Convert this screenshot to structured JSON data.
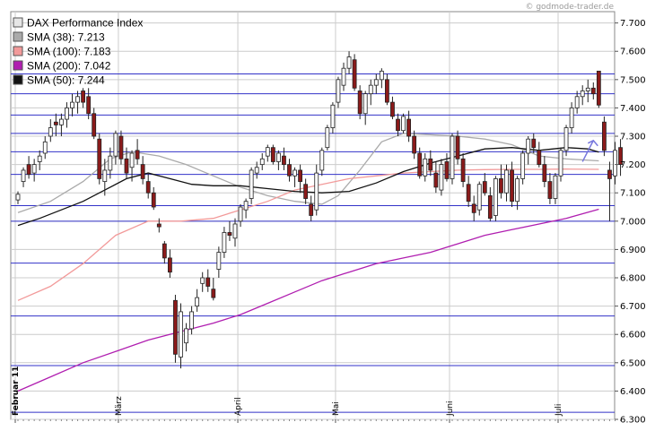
{
  "watermark": "© godmode-trader.de",
  "legend": [
    {
      "label": "DAX Performance Index",
      "swatch": "#e6e6e6"
    },
    {
      "label": "SMA (38): 7.213",
      "swatch": "#aaaaaa"
    },
    {
      "label": "SMA (100): 7.183",
      "swatch": "#f29a9a"
    },
    {
      "label": "SMA (200): 7.042",
      "swatch": "#b01eb0"
    },
    {
      "label": "SMA (50): 7.244",
      "swatch": "#111111"
    }
  ],
  "colors": {
    "up": "#ffffff",
    "down": "#8b1a1a",
    "sma38": "#aaaaaa",
    "sma100": "#f29a9a",
    "sma200": "#b01eb0",
    "sma50": "#111111",
    "hlines": "#3232c8",
    "grid": "#cccccc",
    "arrow": "#7777dd"
  },
  "chart_data": {
    "type": "candlestick",
    "ylim": [
      6300,
      7740
    ],
    "yticks": [
      {
        "v": 7700,
        "label": "7.700"
      },
      {
        "v": 7600,
        "label": "7.600"
      },
      {
        "v": 7500,
        "label": "7.500"
      },
      {
        "v": 7400,
        "label": "7.400"
      },
      {
        "v": 7300,
        "label": "7.300"
      },
      {
        "v": 7200,
        "label": "7.200"
      },
      {
        "v": 7100,
        "label": "7.100"
      },
      {
        "v": 7000,
        "label": "7.000"
      },
      {
        "v": 6900,
        "label": "6.900"
      },
      {
        "v": 6800,
        "label": "6.800"
      },
      {
        "v": 6700,
        "label": "6.700"
      },
      {
        "v": 6600,
        "label": "6.600"
      },
      {
        "v": 6500,
        "label": "6.500"
      },
      {
        "v": 6400,
        "label": "6.400"
      },
      {
        "v": 6300,
        "label": "6.300"
      }
    ],
    "months": [
      {
        "i": 0,
        "label": "Februar 11"
      },
      {
        "i": 19,
        "label": "März"
      },
      {
        "i": 41,
        "label": "April"
      },
      {
        "i": 59,
        "label": "Mai"
      },
      {
        "i": 80,
        "label": "Juni"
      },
      {
        "i": 100,
        "label": "Juli"
      }
    ],
    "hlines": [
      7520,
      7450,
      7375,
      7310,
      7245,
      7165,
      7055,
      7000,
      6852,
      6665,
      6490,
      6325
    ],
    "ohlc": [
      [
        7075,
        7105,
        7060,
        7095
      ],
      [
        7140,
        7190,
        7120,
        7180
      ],
      [
        7200,
        7230,
        7150,
        7165
      ],
      [
        7170,
        7220,
        7140,
        7200
      ],
      [
        7210,
        7250,
        7180,
        7230
      ],
      [
        7240,
        7300,
        7220,
        7280
      ],
      [
        7300,
        7360,
        7280,
        7330
      ],
      [
        7350,
        7380,
        7300,
        7340
      ],
      [
        7340,
        7380,
        7300,
        7360
      ],
      [
        7360,
        7420,
        7330,
        7400
      ],
      [
        7400,
        7450,
        7370,
        7420
      ],
      [
        7420,
        7460,
        7380,
        7440
      ],
      [
        7460,
        7470,
        7400,
        7420
      ],
      [
        7440,
        7470,
        7360,
        7380
      ],
      [
        7380,
        7400,
        7290,
        7300
      ],
      [
        7290,
        7310,
        7130,
        7150
      ],
      [
        7140,
        7220,
        7090,
        7180
      ],
      [
        7180,
        7260,
        7150,
        7230
      ],
      [
        7230,
        7320,
        7200,
        7310
      ],
      [
        7300,
        7320,
        7200,
        7220
      ],
      [
        7220,
        7260,
        7150,
        7170
      ],
      [
        7190,
        7250,
        7140,
        7240
      ],
      [
        7250,
        7290,
        7200,
        7220
      ],
      [
        7200,
        7230,
        7130,
        7150
      ],
      [
        7140,
        7170,
        7080,
        7100
      ],
      [
        7100,
        7120,
        7040,
        7050
      ],
      [
        6990,
        7010,
        6960,
        6980
      ],
      [
        6920,
        6930,
        6850,
        6870
      ],
      [
        6870,
        6900,
        6800,
        6820
      ],
      [
        6720,
        6740,
        6500,
        6530
      ],
      [
        6520,
        6710,
        6480,
        6680
      ],
      [
        6570,
        6640,
        6540,
        6620
      ],
      [
        6620,
        6700,
        6600,
        6680
      ],
      [
        6700,
        6760,
        6680,
        6730
      ],
      [
        6780,
        6820,
        6750,
        6800
      ],
      [
        6800,
        6830,
        6750,
        6770
      ],
      [
        6760,
        6800,
        6720,
        6730
      ],
      [
        6830,
        6910,
        6800,
        6890
      ],
      [
        6890,
        6980,
        6870,
        6960
      ],
      [
        6960,
        7000,
        6930,
        6950
      ],
      [
        6940,
        7010,
        6910,
        6990
      ],
      [
        7000,
        7060,
        6980,
        7050
      ],
      [
        7040,
        7080,
        7010,
        7070
      ],
      [
        7080,
        7190,
        7060,
        7180
      ],
      [
        7170,
        7210,
        7150,
        7190
      ],
      [
        7200,
        7240,
        7180,
        7220
      ],
      [
        7230,
        7270,
        7210,
        7260
      ],
      [
        7260,
        7270,
        7200,
        7210
      ],
      [
        7210,
        7250,
        7180,
        7240
      ],
      [
        7230,
        7260,
        7180,
        7200
      ],
      [
        7200,
        7220,
        7140,
        7160
      ],
      [
        7160,
        7190,
        7120,
        7180
      ],
      [
        7180,
        7200,
        7100,
        7140
      ],
      [
        7130,
        7150,
        7060,
        7080
      ],
      [
        7060,
        7090,
        7000,
        7020
      ],
      [
        7040,
        7200,
        7020,
        7170
      ],
      [
        7180,
        7260,
        7160,
        7250
      ],
      [
        7260,
        7340,
        7250,
        7330
      ],
      [
        7330,
        7420,
        7310,
        7410
      ],
      [
        7420,
        7510,
        7400,
        7500
      ],
      [
        7480,
        7560,
        7460,
        7540
      ],
      [
        7540,
        7600,
        7520,
        7580
      ],
      [
        7570,
        7590,
        7460,
        7470
      ],
      [
        7460,
        7480,
        7360,
        7380
      ],
      [
        7380,
        7460,
        7340,
        7450
      ],
      [
        7450,
        7500,
        7410,
        7480
      ],
      [
        7480,
        7520,
        7450,
        7500
      ],
      [
        7500,
        7540,
        7470,
        7530
      ],
      [
        7500,
        7520,
        7410,
        7420
      ],
      [
        7420,
        7440,
        7360,
        7370
      ],
      [
        7360,
        7380,
        7300,
        7320
      ],
      [
        7320,
        7380,
        7310,
        7370
      ],
      [
        7360,
        7390,
        7280,
        7300
      ],
      [
        7300,
        7320,
        7220,
        7240
      ],
      [
        7240,
        7260,
        7150,
        7160
      ],
      [
        7160,
        7240,
        7140,
        7220
      ],
      [
        7220,
        7250,
        7160,
        7180
      ],
      [
        7170,
        7210,
        7100,
        7120
      ],
      [
        7110,
        7220,
        7090,
        7200
      ],
      [
        7210,
        7240,
        7140,
        7150
      ],
      [
        7150,
        7310,
        7130,
        7300
      ],
      [
        7300,
        7320,
        7200,
        7220
      ],
      [
        7220,
        7240,
        7120,
        7140
      ],
      [
        7130,
        7160,
        7050,
        7070
      ],
      [
        7060,
        7090,
        7000,
        7030
      ],
      [
        7040,
        7140,
        7020,
        7130
      ],
      [
        7140,
        7170,
        7090,
        7100
      ],
      [
        7090,
        7120,
        7000,
        7010
      ],
      [
        7020,
        7160,
        7000,
        7150
      ],
      [
        7150,
        7200,
        7080,
        7100
      ],
      [
        7100,
        7200,
        7070,
        7180
      ],
      [
        7180,
        7210,
        7050,
        7070
      ],
      [
        7070,
        7160,
        7040,
        7150
      ],
      [
        7150,
        7250,
        7130,
        7240
      ],
      [
        7240,
        7300,
        7200,
        7290
      ],
      [
        7290,
        7310,
        7240,
        7260
      ],
      [
        7250,
        7280,
        7190,
        7200
      ],
      [
        7200,
        7230,
        7120,
        7140
      ],
      [
        7140,
        7170,
        7060,
        7080
      ],
      [
        7080,
        7170,
        7060,
        7160
      ],
      [
        7160,
        7260,
        7140,
        7250
      ],
      [
        7250,
        7340,
        7230,
        7330
      ],
      [
        7330,
        7420,
        7310,
        7400
      ],
      [
        7400,
        7460,
        7380,
        7440
      ],
      [
        7440,
        7480,
        7410,
        7460
      ],
      [
        7460,
        7500,
        7420,
        7470
      ],
      [
        7470,
        7490,
        7430,
        7450
      ],
      [
        7530,
        7530,
        7400,
        7410
      ],
      [
        7350,
        7370,
        7230,
        7250
      ],
      [
        7180,
        7210,
        7000,
        7150
      ],
      [
        7160,
        7280,
        7130,
        7250
      ],
      [
        7260,
        7290,
        7160,
        7200
      ]
    ],
    "arrow": {
      "from": [
        104,
        7210
      ],
      "to": [
        106,
        7285
      ]
    },
    "series": [
      {
        "name": "SMA (38): 7.213",
        "color": "#aaaaaa",
        "points": [
          [
            0,
            7030
          ],
          [
            6,
            7070
          ],
          [
            12,
            7140
          ],
          [
            17,
            7220
          ],
          [
            21,
            7245
          ],
          [
            26,
            7230
          ],
          [
            31,
            7200
          ],
          [
            36,
            7160
          ],
          [
            41,
            7120
          ],
          [
            46,
            7090
          ],
          [
            51,
            7070
          ],
          [
            56,
            7060
          ],
          [
            59,
            7090
          ],
          [
            63,
            7180
          ],
          [
            67,
            7280
          ],
          [
            71,
            7310
          ],
          [
            76,
            7305
          ],
          [
            81,
            7300
          ],
          [
            86,
            7290
          ],
          [
            91,
            7270
          ],
          [
            96,
            7230
          ],
          [
            101,
            7220
          ],
          [
            107,
            7213
          ]
        ]
      },
      {
        "name": "SMA (100): 7.183",
        "color": "#f29a9a",
        "points": [
          [
            0,
            6720
          ],
          [
            6,
            6770
          ],
          [
            12,
            6850
          ],
          [
            18,
            6950
          ],
          [
            24,
            7000
          ],
          [
            30,
            7000
          ],
          [
            36,
            7010
          ],
          [
            41,
            7040
          ],
          [
            46,
            7070
          ],
          [
            51,
            7110
          ],
          [
            56,
            7130
          ],
          [
            61,
            7150
          ],
          [
            66,
            7160
          ],
          [
            71,
            7170
          ],
          [
            76,
            7175
          ],
          [
            81,
            7180
          ],
          [
            86,
            7182
          ],
          [
            91,
            7183
          ],
          [
            96,
            7183
          ],
          [
            101,
            7184
          ],
          [
            107,
            7183
          ]
        ]
      },
      {
        "name": "SMA (200): 7.042",
        "color": "#b01eb0",
        "points": [
          [
            0,
            6400
          ],
          [
            6,
            6450
          ],
          [
            12,
            6500
          ],
          [
            18,
            6540
          ],
          [
            24,
            6580
          ],
          [
            30,
            6610
          ],
          [
            36,
            6640
          ],
          [
            41,
            6670
          ],
          [
            46,
            6710
          ],
          [
            51,
            6750
          ],
          [
            56,
            6790
          ],
          [
            61,
            6820
          ],
          [
            66,
            6850
          ],
          [
            71,
            6870
          ],
          [
            76,
            6890
          ],
          [
            81,
            6920
          ],
          [
            86,
            6950
          ],
          [
            91,
            6970
          ],
          [
            96,
            6990
          ],
          [
            101,
            7010
          ],
          [
            107,
            7042
          ]
        ]
      },
      {
        "name": "SMA (50): 7.244",
        "color": "#111111",
        "points": [
          [
            0,
            6985
          ],
          [
            4,
            7010
          ],
          [
            8,
            7040
          ],
          [
            12,
            7070
          ],
          [
            16,
            7110
          ],
          [
            20,
            7150
          ],
          [
            24,
            7170
          ],
          [
            28,
            7150
          ],
          [
            32,
            7130
          ],
          [
            36,
            7125
          ],
          [
            41,
            7125
          ],
          [
            46,
            7115
          ],
          [
            51,
            7105
          ],
          [
            56,
            7100
          ],
          [
            61,
            7105
          ],
          [
            66,
            7135
          ],
          [
            71,
            7175
          ],
          [
            76,
            7205
          ],
          [
            81,
            7230
          ],
          [
            86,
            7255
          ],
          [
            91,
            7260
          ],
          [
            96,
            7250
          ],
          [
            101,
            7260
          ],
          [
            105,
            7255
          ],
          [
            107,
            7244
          ]
        ]
      }
    ]
  }
}
